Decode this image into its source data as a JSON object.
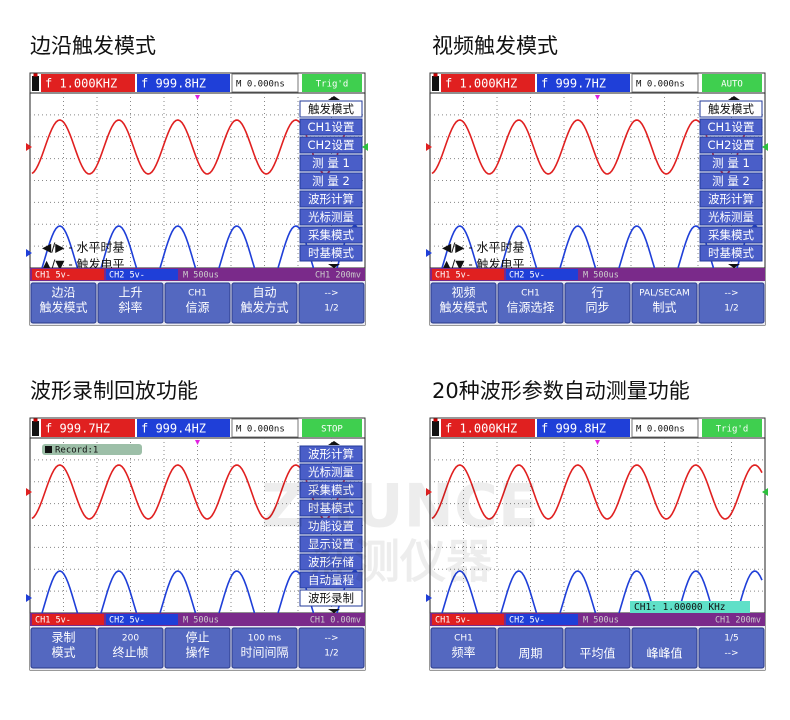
{
  "watermark": [
    "ZHUNCE",
    "准测仪器"
  ],
  "panels": [
    {
      "title": "边沿触发模式",
      "top": [
        "f 1.000KHZ",
        "f 999.8HZ",
        "M 0.000ns",
        "Trig'd"
      ],
      "menu": [
        "触发模式",
        "CH1设置",
        "CH2设置",
        "测 量 1",
        "测 量 2",
        "波形计算",
        "光标测量",
        "采集模式",
        "时基模式"
      ],
      "menu_selected": 0,
      "notes": [
        "◀/▶ - 水平时基",
        "▲/▼ - 触发电平"
      ],
      "status": [
        "CH1 5v-",
        "CH2 5v-",
        "M 500us",
        "CH1 200mv"
      ],
      "softkeys": [
        [
          "边沿",
          "触发模式"
        ],
        [
          "上升",
          "斜率"
        ],
        [
          "CH1",
          "信源"
        ],
        [
          "自动",
          "触发方式"
        ],
        [
          "-->",
          "1/2"
        ]
      ]
    },
    {
      "title": "视频触发模式",
      "top": [
        "f 1.000KHZ",
        "f 999.7HZ",
        "M 0.000ns",
        "AUTO"
      ],
      "menu": [
        "触发模式",
        "CH1设置",
        "CH2设置",
        "测 量 1",
        "测 量 2",
        "波形计算",
        "光标测量",
        "采集模式",
        "时基模式"
      ],
      "menu_selected": 0,
      "notes": [
        "◀/▶ - 水平时基",
        "▲/▼ - 触发电平"
      ],
      "status": [
        "CH1 5v-",
        "CH2 5v-",
        "M 500us"
      ],
      "softkeys": [
        [
          "视频",
          "触发模式"
        ],
        [
          "CH1",
          "信源选择"
        ],
        [
          "行",
          "同步"
        ],
        [
          "PAL/SECAM",
          "制式"
        ],
        [
          "-->",
          "1/2"
        ]
      ]
    },
    {
      "title": "波形录制回放功能",
      "top": [
        "f 999.7HZ",
        "f 999.4HZ",
        "M 0.000ns",
        "STOP"
      ],
      "menu": [
        "波形计算",
        "光标测量",
        "采集模式",
        "时基模式",
        "功能设置",
        "显示设置",
        "波形存储",
        "自动量程",
        "波形录制"
      ],
      "menu_selected": 8,
      "record": "Record:1",
      "status": [
        "CH1 5v-",
        "CH2 5v-",
        "M 500us",
        "CH1 0.00mv"
      ],
      "softkeys": [
        [
          "录制",
          "模式"
        ],
        [
          "200",
          "终止帧"
        ],
        [
          "停止",
          "操作"
        ],
        [
          "100 ms",
          "时间间隔"
        ],
        [
          "-->",
          "1/2"
        ]
      ]
    },
    {
      "title": "20种波形参数自动测量功能",
      "top": [
        "f 1.000KHZ",
        "f 999.8HZ",
        "M 0.000ns",
        "Trig'd"
      ],
      "readout": "CH1: 1.00000 KHz",
      "status": [
        "CH1 5v-",
        "CH2 5v-",
        "M 500us",
        "CH1 200mv"
      ],
      "softkeys": [
        [
          "CH1",
          "频率"
        ],
        [
          "周期"
        ],
        [
          "平均值"
        ],
        [
          "峰峰值"
        ],
        [
          "1/5",
          "-->"
        ]
      ]
    }
  ]
}
